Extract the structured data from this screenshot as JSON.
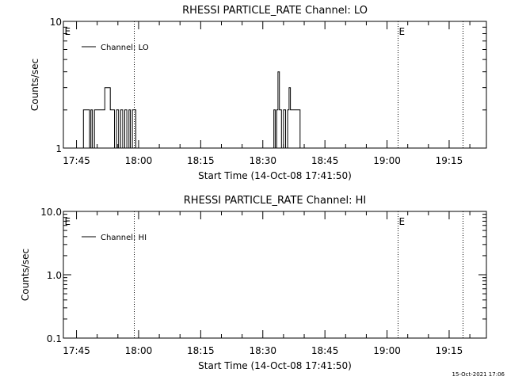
{
  "chart_data": [
    {
      "type": "line",
      "title": "RHESSI PARTICLE_RATE Channel: LO",
      "xlabel": "Start Time (14-Oct-08 17:41:50)",
      "ylabel": "Counts/sec",
      "y_scale": "log",
      "ylim": [
        1,
        10
      ],
      "y_ticks": [
        {
          "value": 1,
          "label": "1"
        },
        {
          "value": 10,
          "label": "10"
        }
      ],
      "xlim": [
        "17:41:50",
        "19:24:00"
      ],
      "x_ticks": [
        "17:45",
        "18:00",
        "18:15",
        "18:30",
        "18:45",
        "19:00",
        "19:15"
      ],
      "legend": {
        "entry": "Channel: LO",
        "placement": "top-left"
      },
      "markers": [
        {
          "time": "17:41:50",
          "label": "E"
        },
        {
          "time": "17:58:50",
          "label": ""
        },
        {
          "time": "19:02:40",
          "label": "E"
        },
        {
          "time": "19:18:20",
          "label": ""
        }
      ],
      "series": [
        {
          "name": "Channel: LO",
          "x": [
            "17:46:10",
            "17:46:40",
            "17:47:00",
            "17:48:10",
            "17:48:30",
            "17:48:50",
            "17:49:20",
            "17:49:40",
            "17:50:20",
            "17:50:40",
            "17:51:20",
            "17:51:50",
            "17:52:40",
            "17:53:10",
            "17:53:40",
            "17:54:10",
            "17:54:40",
            "17:55:10",
            "17:55:40",
            "17:56:10",
            "17:56:40",
            "17:57:10",
            "17:57:40",
            "17:58:00",
            "17:58:30",
            "17:59:00",
            "17:59:20",
            "18:32:10",
            "18:32:40",
            "18:33:00",
            "18:33:20",
            "18:33:40",
            "18:34:00",
            "18:34:30",
            "18:35:00",
            "18:35:30",
            "18:36:00",
            "18:36:20",
            "18:36:40",
            "18:37:10",
            "18:38:00",
            "18:38:30",
            "18:39:00",
            "18:39:20"
          ],
          "values": [
            1,
            2,
            2,
            1,
            2,
            1,
            2,
            2,
            2,
            2,
            2,
            3,
            3,
            2,
            2,
            1,
            2,
            1,
            2,
            1,
            2,
            1,
            2,
            1,
            2,
            2,
            1,
            1,
            2,
            1,
            2,
            4,
            2,
            1,
            2,
            1,
            2,
            3,
            2,
            2,
            2,
            2,
            1,
            1
          ]
        }
      ]
    },
    {
      "type": "line",
      "title": "RHESSI PARTICLE_RATE Channel: HI",
      "xlabel": "Start Time (14-Oct-08 17:41:50)",
      "ylabel": "Counts/sec",
      "y_scale": "log",
      "ylim": [
        0.1,
        10
      ],
      "y_ticks": [
        {
          "value": 0.1,
          "label": "0.1"
        },
        {
          "value": 1,
          "label": "1.0"
        },
        {
          "value": 10,
          "label": "10.0"
        }
      ],
      "xlim": [
        "17:41:50",
        "19:24:00"
      ],
      "x_ticks": [
        "17:45",
        "18:00",
        "18:15",
        "18:30",
        "18:45",
        "19:00",
        "19:15"
      ],
      "legend": {
        "entry": "Channel: HI",
        "placement": "top-left"
      },
      "markers": [
        {
          "time": "17:41:50",
          "label": "E"
        },
        {
          "time": "17:58:50",
          "label": ""
        },
        {
          "time": "19:02:40",
          "label": "E"
        },
        {
          "time": "19:18:20",
          "label": ""
        }
      ],
      "series": [
        {
          "name": "Channel: HI",
          "x": [],
          "values": []
        }
      ]
    }
  ],
  "footer": {
    "timestamp": "15-Oct-2021 17:06"
  }
}
